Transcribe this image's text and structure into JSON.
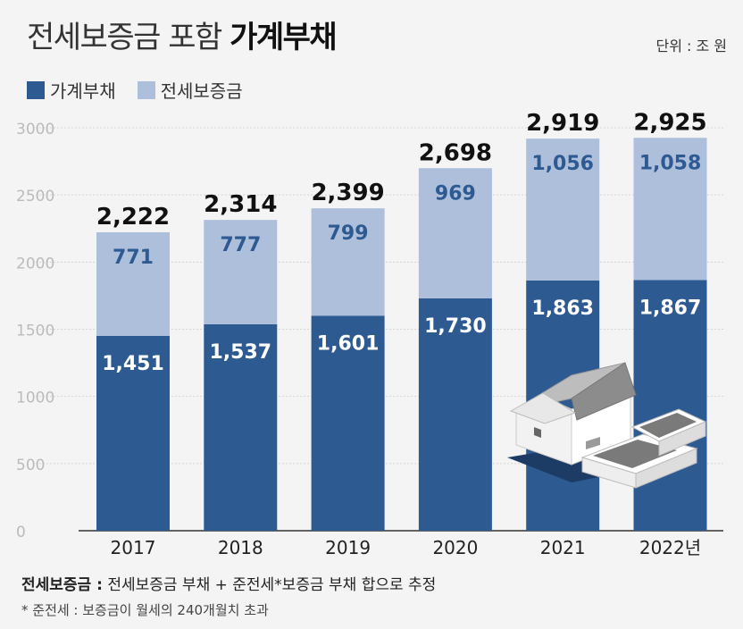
{
  "header": {
    "title_light": "전세보증금 포함",
    "title_bold": "가계부채",
    "unit": "단위 : 조 원"
  },
  "legend": [
    {
      "label": "가계부채",
      "color": "#2e5a92"
    },
    {
      "label": "전세보증금",
      "color": "#aebfdc"
    }
  ],
  "chart_data": {
    "type": "bar",
    "stacked": true,
    "categories": [
      "2017",
      "2018",
      "2019",
      "2020",
      "2021",
      "2022년"
    ],
    "series": [
      {
        "name": "가계부채",
        "values": [
          1451,
          1537,
          1601,
          1730,
          1863,
          1867
        ],
        "labels": [
          "1,451",
          "1,537",
          "1,601",
          "1,730",
          "1,863",
          "1,867"
        ],
        "color": "#2e5a92"
      },
      {
        "name": "전세보증금",
        "values": [
          771,
          777,
          799,
          969,
          1056,
          1058
        ],
        "labels": [
          "771",
          "777",
          "799",
          "969",
          "1,056",
          "1,058"
        ],
        "color": "#aebfdc"
      }
    ],
    "totals": [
      "2,222",
      "2,314",
      "2,399",
      "2,698",
      "2,919",
      "2,925"
    ],
    "ylim": [
      0,
      3000
    ],
    "yticks": [
      "0",
      "500",
      "1000",
      "1500",
      "2000",
      "2500",
      "3000"
    ],
    "grid": true
  },
  "notes": {
    "note1_bold": "전세보증금 :",
    "note1_text": "전세보증금 부채 + 준전세*보증금 부채 합으로 추정",
    "note2": "* 준전세 : 보증금이 월세의 240개월치 초과"
  }
}
